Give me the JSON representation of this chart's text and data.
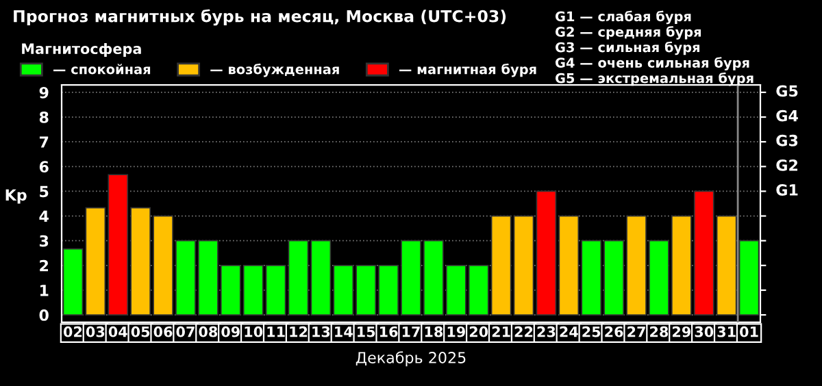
{
  "chart_data": {
    "type": "bar",
    "title": "Прогноз магнитных бурь на месяц, Москва (UTC+03)",
    "xlabel": "Декабрь 2025",
    "ylabel": "Kp",
    "categories": [
      "02",
      "03",
      "04",
      "05",
      "06",
      "07",
      "08",
      "09",
      "10",
      "11",
      "12",
      "13",
      "14",
      "15",
      "16",
      "17",
      "18",
      "19",
      "20",
      "21",
      "22",
      "23",
      "24",
      "25",
      "26",
      "27",
      "28",
      "29",
      "30",
      "31",
      "01"
    ],
    "series": [
      {
        "name": "— спокойная",
        "color": "#00ff00",
        "values": [
          2.67,
          null,
          null,
          null,
          null,
          3,
          3,
          2,
          2,
          2,
          3,
          3,
          2,
          2,
          2,
          3,
          3,
          2,
          2,
          null,
          null,
          null,
          null,
          3,
          3,
          null,
          3,
          null,
          null,
          null,
          3
        ]
      },
      {
        "name": "— возбужденная",
        "color": "#ffc000",
        "values": [
          null,
          4.33,
          null,
          4.33,
          4,
          null,
          null,
          null,
          null,
          null,
          null,
          null,
          null,
          null,
          null,
          null,
          null,
          null,
          null,
          4,
          4,
          null,
          4,
          null,
          null,
          4,
          null,
          4,
          null,
          4,
          null
        ]
      },
      {
        "name": "— магнитная буря",
        "color": "#ff0000",
        "values": [
          null,
          null,
          5.67,
          null,
          null,
          null,
          null,
          null,
          null,
          null,
          null,
          null,
          null,
          null,
          null,
          null,
          null,
          null,
          null,
          null,
          null,
          5,
          null,
          null,
          null,
          null,
          null,
          null,
          5,
          null,
          null
        ]
      }
    ],
    "legend_title": "Магнитосфера",
    "legend": "top left",
    "ylim": [
      -0.3,
      9.3
    ],
    "yticks": [
      0,
      1,
      2,
      3,
      4,
      5,
      6,
      7,
      8,
      9
    ],
    "grid": "y",
    "ref_lines": [
      {
        "axis": "x",
        "value": "01",
        "color": "#888888"
      }
    ],
    "annotations": [
      "G1 — слабая буря",
      "G2 — средняя буря",
      "G3 — сильная буря",
      "G4 — очень сильная буря",
      "G5 — экстремальная буря",
      "G1",
      "G2",
      "G3",
      "G4",
      "G5"
    ]
  }
}
